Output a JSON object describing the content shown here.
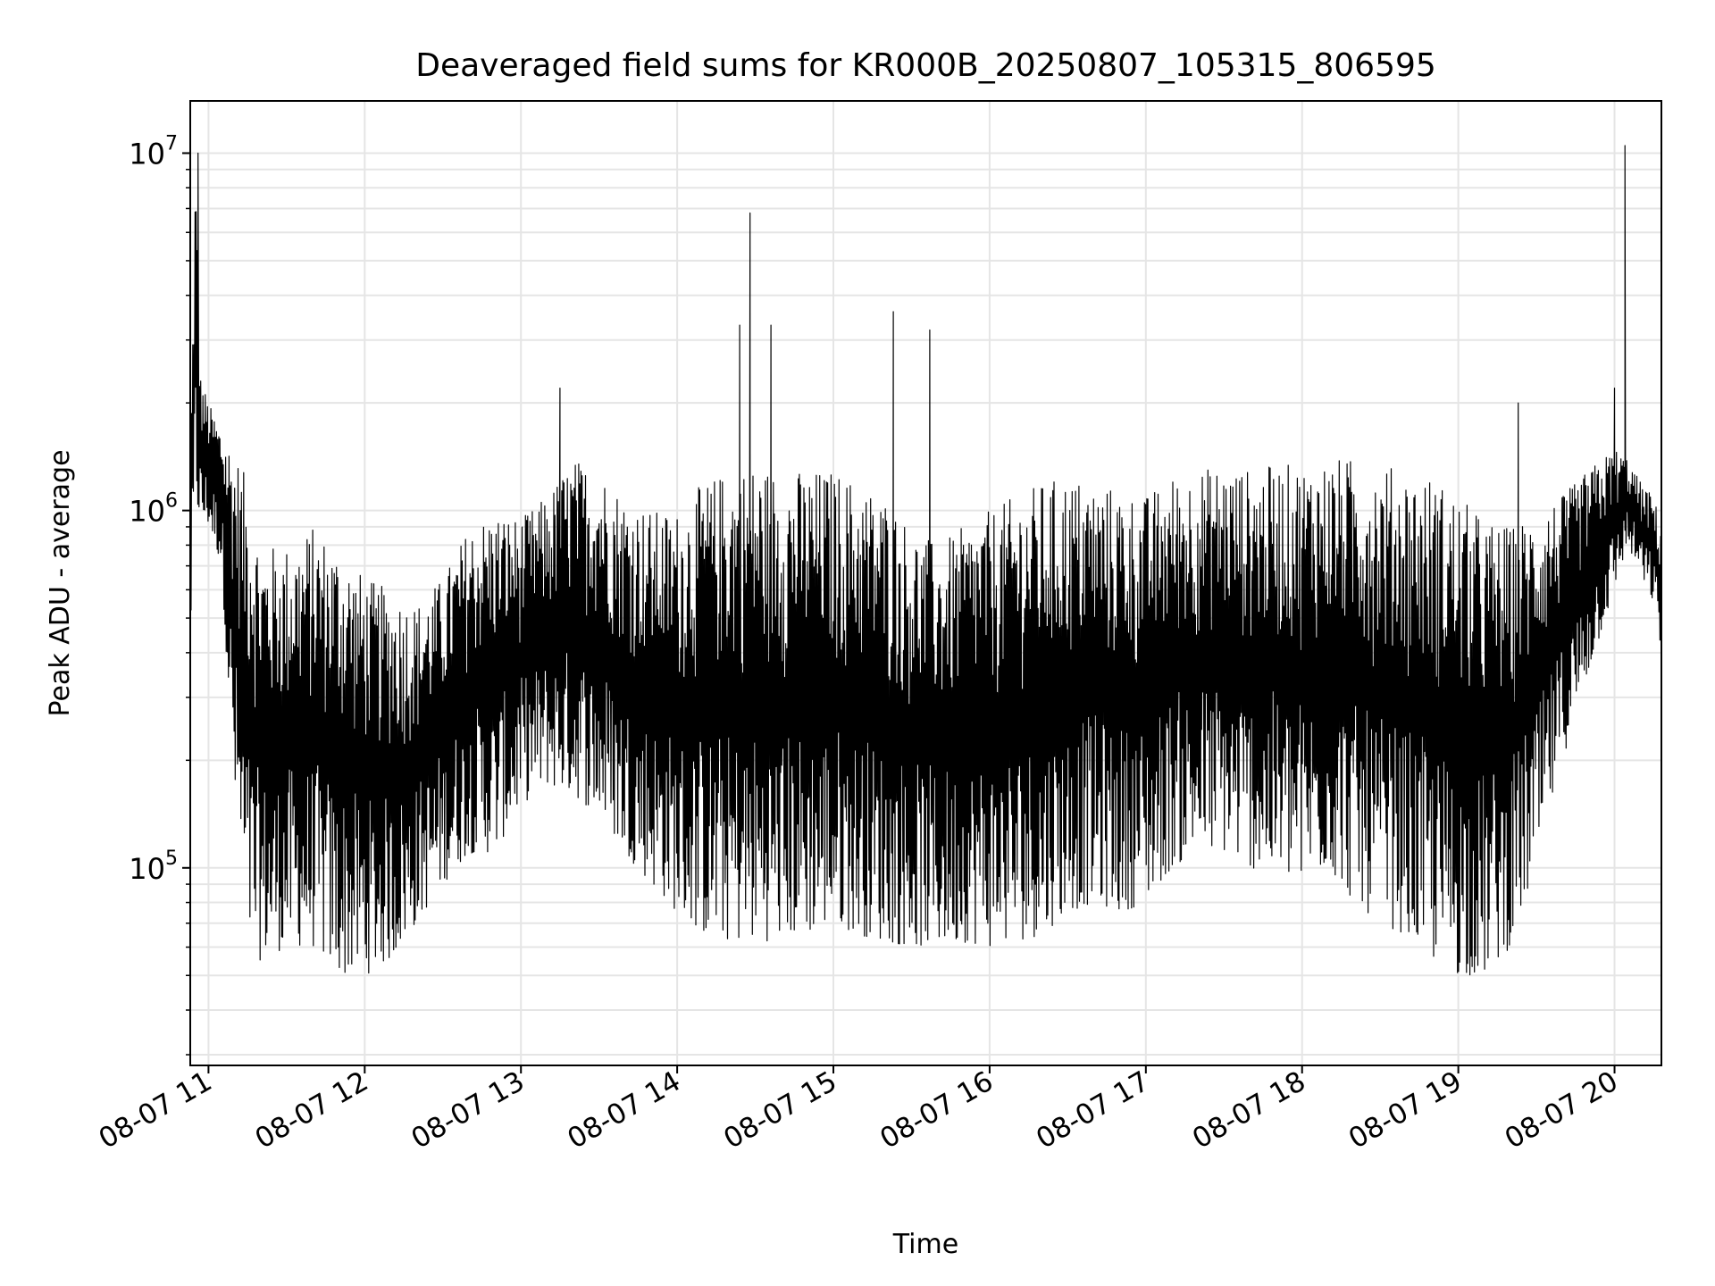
{
  "chart_data": {
    "type": "line",
    "title": "Deaveraged field sums for KR000B_20250807_105315_806595",
    "xlabel": "Time",
    "ylabel": "Peak ADU - average",
    "yscale": "log",
    "ylim": [
      28000,
      14000000
    ],
    "xlim": [
      "2025-08-07 10:53",
      "2025-08-07 20:18"
    ],
    "x_ticks": [
      {
        "value": "2025-08-07 11:00",
        "label": "08-07 11"
      },
      {
        "value": "2025-08-07 12:00",
        "label": "08-07 12"
      },
      {
        "value": "2025-08-07 13:00",
        "label": "08-07 13"
      },
      {
        "value": "2025-08-07 14:00",
        "label": "08-07 14"
      },
      {
        "value": "2025-08-07 15:00",
        "label": "08-07 15"
      },
      {
        "value": "2025-08-07 16:00",
        "label": "08-07 16"
      },
      {
        "value": "2025-08-07 17:00",
        "label": "08-07 17"
      },
      {
        "value": "2025-08-07 18:00",
        "label": "08-07 18"
      },
      {
        "value": "2025-08-07 19:00",
        "label": "08-07 19"
      },
      {
        "value": "2025-08-07 20:00",
        "label": "08-07 20"
      }
    ],
    "y_ticks": [
      {
        "value": 100000,
        "base": "10",
        "exp": "5"
      },
      {
        "value": 1000000,
        "base": "10",
        "exp": "6"
      },
      {
        "value": 10000000,
        "base": "10",
        "exp": "7"
      }
    ],
    "grid": true,
    "line_color": "#000000",
    "grid_color": "#e5e5e5",
    "series": [
      {
        "x": [
          "10:53",
          "10:55",
          "10:57",
          "11:00",
          "11:05",
          "11:10",
          "11:15",
          "11:20",
          "11:30",
          "11:40",
          "11:50",
          "12:00",
          "12:10",
          "12:20",
          "12:30",
          "12:40",
          "12:50",
          "13:00",
          "13:10",
          "13:20",
          "13:30",
          "13:40",
          "13:50",
          "14:00",
          "14:10",
          "14:20",
          "14:30",
          "14:40",
          "14:50",
          "15:00",
          "15:10",
          "15:20",
          "15:30",
          "15:40",
          "15:50",
          "16:00",
          "16:10",
          "16:20",
          "16:30",
          "16:40",
          "16:50",
          "17:00",
          "17:10",
          "17:20",
          "17:30",
          "17:40",
          "17:50",
          "18:00",
          "18:10",
          "18:20",
          "18:30",
          "18:40",
          "18:50",
          "19:00",
          "19:10",
          "19:20",
          "19:30",
          "19:40",
          "19:50",
          "20:00",
          "20:05",
          "20:10",
          "20:15",
          "20:18"
        ],
        "upper": [
          1300000,
          10000000,
          2400000,
          2000000,
          1700000,
          1500000,
          1200000,
          800000,
          800000,
          900000,
          800000,
          650000,
          600000,
          550000,
          650000,
          900000,
          1000000,
          950000,
          1100000,
          1400000,
          1300000,
          1100000,
          1000000,
          1000000,
          1200000,
          1300000,
          1350000,
          1300000,
          1300000,
          1300000,
          1200000,
          1100000,
          900000,
          800000,
          900000,
          1000000,
          1100000,
          1200000,
          1250000,
          1200000,
          1150000,
          1100000,
          1250000,
          1300000,
          1350000,
          1300000,
          1350000,
          1350000,
          1400000,
          1400000,
          1350000,
          1300000,
          1250000,
          1100000,
          950000,
          900000,
          1000000,
          1100000,
          1300000,
          1500000,
          1400000,
          1200000,
          1100000,
          900000
        ],
        "lower": [
          400000,
          1000000,
          900000,
          900000,
          700000,
          150000,
          60000,
          55000,
          60000,
          60000,
          50000,
          50000,
          55000,
          70000,
          90000,
          110000,
          110000,
          150000,
          170000,
          160000,
          140000,
          110000,
          90000,
          75000,
          65000,
          62000,
          62000,
          63000,
          65000,
          70000,
          65000,
          62000,
          60000,
          60000,
          62000,
          60000,
          62000,
          65000,
          75000,
          80000,
          75000,
          80000,
          100000,
          110000,
          110000,
          100000,
          95000,
          90000,
          100000,
          80000,
          70000,
          65000,
          55000,
          50000,
          50000,
          60000,
          100000,
          200000,
          350000,
          600000,
          800000,
          650000,
          550000,
          400000
        ],
        "spikes": [
          {
            "x": "10:56",
            "y": 10000000
          },
          {
            "x": "13:15",
            "y": 2200000
          },
          {
            "x": "14:24",
            "y": 3300000
          },
          {
            "x": "14:28",
            "y": 6800000
          },
          {
            "x": "14:36",
            "y": 3300000
          },
          {
            "x": "15:23",
            "y": 3600000
          },
          {
            "x": "15:37",
            "y": 3200000
          },
          {
            "x": "19:23",
            "y": 2000000
          },
          {
            "x": "20:00",
            "y": 2200000
          },
          {
            "x": "20:04",
            "y": 10500000
          }
        ]
      }
    ]
  }
}
